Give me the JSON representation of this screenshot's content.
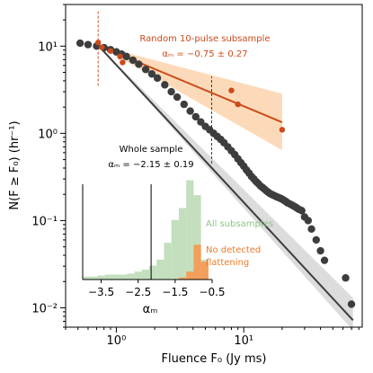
{
  "chart_data": [
    {
      "type": "scatter",
      "xlabel": "Fluence F₀ (Jy ms)",
      "ylabel": "N(F ≥ F₀) (hr⁻¹)",
      "xscale": "log",
      "yscale": "log",
      "xlim": [
        0.4,
        85
      ],
      "ylim": [
        0.006,
        30
      ],
      "x_ticks": [
        1,
        10
      ],
      "x_tick_labels": [
        "10⁰",
        "10¹"
      ],
      "y_ticks": [
        0.01,
        0.1,
        1,
        10
      ],
      "y_tick_labels": [
        "10⁻²",
        "10⁻¹",
        "10⁰",
        "10¹"
      ],
      "grid": false,
      "series": [
        {
          "name": "",
          "color": "#3d3d3d",
          "role": "whole-sample",
          "x": [
            0.52,
            0.6,
            0.7,
            0.8,
            0.9,
            1.0,
            1.1,
            1.2,
            1.35,
            1.5,
            1.7,
            1.9,
            2.1,
            2.4,
            2.7,
            3.0,
            3.4,
            3.8,
            4.2,
            4.6,
            5.0,
            5.4,
            5.8,
            6.2,
            6.6,
            7.0,
            7.5,
            8.0,
            8.5,
            9.0,
            9.5,
            10.0,
            10.5,
            11.0,
            11.5,
            12.0,
            12.5,
            13.0,
            13.5,
            14.0,
            14.5,
            15.0,
            15.5,
            16.0,
            16.5,
            17.0,
            17.5,
            18.0,
            18.5,
            19.0,
            19.5,
            20.0,
            20.5,
            21.0,
            21.5,
            22.0,
            23.0,
            24.0,
            25.0,
            26.0,
            27.0,
            28.5,
            30.0,
            32.0,
            34.0,
            37.0,
            40.0,
            43.0,
            63.0,
            70.0
          ],
          "y": [
            10.8,
            10.4,
            10.0,
            9.6,
            9.1,
            8.6,
            8.1,
            7.6,
            6.9,
            6.2,
            5.4,
            4.8,
            4.3,
            3.6,
            3.0,
            2.6,
            2.15,
            1.8,
            1.55,
            1.35,
            1.2,
            1.1,
            1.0,
            0.92,
            0.85,
            0.78,
            0.7,
            0.63,
            0.57,
            0.51,
            0.46,
            0.42,
            0.38,
            0.35,
            0.32,
            0.3,
            0.28,
            0.265,
            0.25,
            0.24,
            0.23,
            0.22,
            0.212,
            0.205,
            0.2,
            0.196,
            0.192,
            0.188,
            0.185,
            0.182,
            0.179,
            0.176,
            0.172,
            0.168,
            0.165,
            0.16,
            0.155,
            0.15,
            0.145,
            0.14,
            0.135,
            0.13,
            0.11,
            0.1,
            0.08,
            0.06,
            0.045,
            0.035,
            0.022,
            0.011
          ]
        },
        {
          "name": "",
          "color": "#cc4a1a",
          "role": "random-10-pulse-subsample",
          "x": [
            0.72,
            0.77,
            0.9,
            1.07,
            1.12,
            8.0,
            9.0,
            20.0
          ],
          "y": [
            11.0,
            9.7,
            8.8,
            7.6,
            6.5,
            3.1,
            2.15,
            1.1
          ]
        }
      ],
      "fits": [
        {
          "color": "#3d3d3d",
          "x": [
            0.72,
            72.0
          ],
          "y": [
            10.2,
            0.0072
          ],
          "band_low": [
            10.2,
            0.0055
          ],
          "band_high": [
            10.2,
            0.013
          ]
        },
        {
          "color": "#cc4a1a",
          "x": [
            0.72,
            20.0
          ],
          "y": [
            10.2,
            1.34
          ],
          "band_low": [
            10.2,
            0.64
          ],
          "band_high": [
            10.2,
            2.85
          ]
        }
      ],
      "vlines": [
        {
          "x": 0.72,
          "y_range": [
            3.5,
            25
          ],
          "color": "#cc4a1a",
          "style": "dashed"
        },
        {
          "x": 5.6,
          "y_range": [
            0.45,
            4.5
          ],
          "color": "#3d3d3d",
          "style": "dashed"
        }
      ],
      "annotations": [
        {
          "text": "Random 10-pulse subsample",
          "color": "#cc4a1a"
        },
        {
          "text": "αₘ = −0.75 ± 0.27",
          "color": "#cc4a1a"
        },
        {
          "text": "Whole sample",
          "color": "#000000"
        },
        {
          "text": "αₘ = −2.15 ± 0.19",
          "color": "#000000"
        }
      ]
    },
    {
      "type": "bar",
      "role": "inset-histogram",
      "xlabel": "αₘ",
      "xlim": [
        -4.0,
        -0.5
      ],
      "x_ticks": [
        -3.5,
        -2.5,
        -1.5,
        -0.5
      ],
      "x_tick_labels": [
        "−3.5",
        "−2.5",
        "−1.5",
        "−0.5"
      ],
      "bin_edges": [
        -4.0,
        -3.8,
        -3.6,
        -3.4,
        -3.2,
        -3.0,
        -2.8,
        -2.6,
        -2.4,
        -2.2,
        -2.0,
        -1.8,
        -1.6,
        -1.4,
        -1.2,
        -1.0,
        -0.8,
        -0.6
      ],
      "series": [
        {
          "name": "All subsamples",
          "color": "#b8d9b3",
          "values": [
            3,
            3,
            4,
            5,
            5,
            5,
            6,
            8,
            10,
            14,
            20,
            37,
            60,
            72,
            100,
            85,
            20
          ]
        },
        {
          "name": "No detected flattening",
          "color": "#f59a55",
          "values": [
            0,
            0,
            0,
            0,
            0,
            0,
            0,
            0,
            0,
            0,
            0,
            0,
            0,
            2,
            8,
            35,
            18
          ]
        }
      ],
      "vline": {
        "x": -2.15,
        "color": "#000000"
      },
      "legend_labels": [
        {
          "text": "All subsamples",
          "color": "#8fc489"
        },
        {
          "text": "No detected",
          "color": "#f07a26"
        },
        {
          "text": "flattening",
          "color": "#f07a26"
        }
      ]
    }
  ]
}
